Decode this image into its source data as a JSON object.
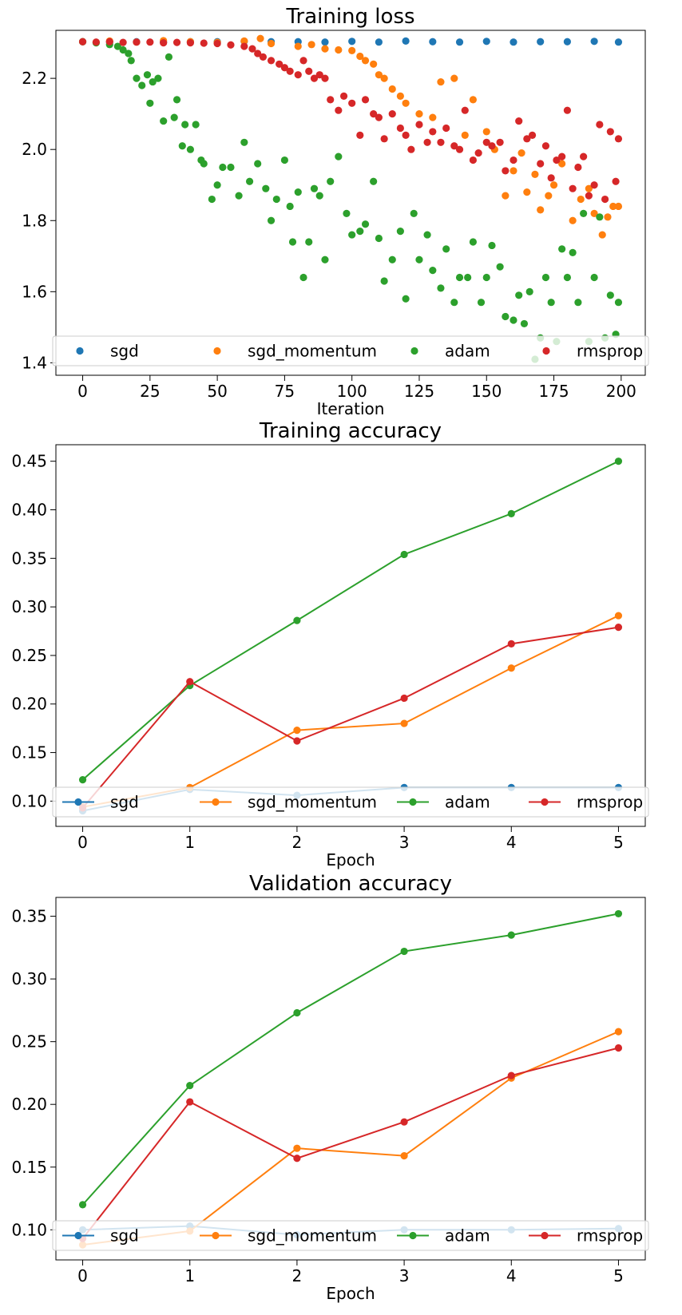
{
  "colors": {
    "sgd": "#1f77b4",
    "sgd_momentum": "#ff7f0e",
    "adam": "#2ca02c",
    "rmsprop": "#d62728"
  },
  "chart_data": [
    {
      "type": "scatter",
      "title": "Training loss",
      "xlabel": "Iteration",
      "ylabel": "",
      "xlim": [
        -9.95,
        208.95
      ],
      "ylim": [
        1.365,
        2.335
      ],
      "xticks": [
        0,
        25,
        50,
        75,
        100,
        125,
        150,
        175,
        200
      ],
      "yticks": [
        1.4,
        1.6,
        1.8,
        2.0,
        2.2
      ],
      "ytick_labels": [
        "1.4",
        "1.6",
        "1.8",
        "2.0",
        "2.2"
      ],
      "grid": false,
      "legend_placement": "lower center, one row",
      "series": [
        {
          "name": "sgd",
          "color": "#1f77b4",
          "x": [
            0,
            10,
            20,
            30,
            40,
            50,
            60,
            70,
            80,
            90,
            100,
            110,
            120,
            130,
            140,
            150,
            160,
            170,
            180,
            190,
            199
          ],
          "y": [
            2.303,
            2.302,
            2.303,
            2.302,
            2.303,
            2.303,
            2.304,
            2.303,
            2.303,
            2.302,
            2.304,
            2.302,
            2.305,
            2.303,
            2.302,
            2.304,
            2.302,
            2.303,
            2.303,
            2.304,
            2.302
          ]
        },
        {
          "name": "sgd_momentum",
          "color": "#ff7f0e",
          "x": [
            0,
            10,
            20,
            30,
            40,
            50,
            60,
            66,
            70,
            80,
            85,
            90,
            95,
            100,
            103,
            105,
            108,
            110,
            112,
            115,
            118,
            120,
            125,
            130,
            133,
            138,
            142,
            145,
            150,
            153,
            157,
            160,
            163,
            165,
            168,
            170,
            173,
            175,
            178,
            182,
            185,
            188,
            190,
            193,
            195,
            197,
            199
          ],
          "y": [
            2.303,
            2.305,
            2.302,
            2.306,
            2.303,
            2.301,
            2.305,
            2.312,
            2.298,
            2.29,
            2.295,
            2.283,
            2.28,
            2.278,
            2.262,
            2.25,
            2.24,
            2.21,
            2.2,
            2.17,
            2.15,
            2.13,
            2.1,
            2.09,
            2.19,
            2.2,
            2.04,
            2.14,
            2.05,
            2.0,
            1.87,
            1.94,
            1.99,
            1.88,
            1.93,
            1.83,
            1.87,
            1.9,
            1.96,
            1.8,
            1.86,
            1.89,
            1.82,
            1.76,
            1.81,
            1.84,
            1.84
          ]
        },
        {
          "name": "adam",
          "color": "#2ca02c",
          "x": [
            0,
            5,
            10,
            13,
            15,
            17,
            18,
            20,
            22,
            24,
            25,
            26,
            28,
            30,
            32,
            34,
            35,
            37,
            38,
            40,
            42,
            44,
            45,
            48,
            50,
            52,
            55,
            58,
            60,
            62,
            65,
            68,
            70,
            72,
            75,
            77,
            78,
            80,
            82,
            84,
            86,
            88,
            90,
            92,
            95,
            98,
            100,
            103,
            105,
            108,
            110,
            112,
            115,
            118,
            120,
            123,
            125,
            128,
            130,
            133,
            135,
            138,
            140,
            143,
            145,
            148,
            150,
            152,
            155,
            157,
            160,
            162,
            164,
            166,
            168,
            170,
            172,
            174,
            176,
            178,
            180,
            182,
            184,
            186,
            188,
            190,
            192,
            194,
            196,
            198,
            199
          ],
          "y": [
            2.303,
            2.3,
            2.295,
            2.29,
            2.28,
            2.27,
            2.25,
            2.2,
            2.18,
            2.21,
            2.13,
            2.19,
            2.2,
            2.08,
            2.26,
            2.09,
            2.14,
            2.01,
            2.07,
            2.0,
            2.07,
            1.97,
            1.96,
            1.86,
            1.9,
            1.95,
            1.95,
            1.87,
            2.02,
            1.91,
            1.96,
            1.89,
            1.8,
            1.86,
            1.97,
            1.84,
            1.74,
            1.88,
            1.64,
            1.74,
            1.89,
            1.87,
            1.69,
            1.91,
            1.98,
            1.82,
            1.76,
            1.77,
            1.79,
            1.91,
            1.75,
            1.63,
            1.69,
            1.77,
            1.58,
            1.82,
            1.69,
            1.76,
            1.66,
            1.61,
            1.72,
            1.57,
            1.64,
            1.64,
            1.74,
            1.57,
            1.64,
            1.73,
            1.67,
            1.53,
            1.52,
            1.59,
            1.51,
            1.6,
            1.41,
            1.47,
            1.64,
            1.57,
            1.46,
            1.72,
            1.64,
            1.71,
            1.57,
            1.82,
            1.46,
            1.64,
            1.81,
            1.47,
            1.59,
            1.48,
            1.57
          ]
        },
        {
          "name": "rmsprop",
          "color": "#d62728",
          "x": [
            0,
            5,
            10,
            15,
            20,
            25,
            30,
            35,
            40,
            45,
            50,
            55,
            60,
            63,
            65,
            67,
            70,
            73,
            75,
            77,
            80,
            82,
            84,
            86,
            88,
            90,
            92,
            95,
            97,
            100,
            103,
            105,
            108,
            110,
            112,
            115,
            118,
            120,
            122,
            125,
            128,
            130,
            133,
            135,
            138,
            140,
            142,
            145,
            147,
            150,
            152,
            155,
            157,
            160,
            162,
            165,
            167,
            170,
            172,
            174,
            176,
            178,
            180,
            182,
            184,
            186,
            188,
            190,
            192,
            194,
            196,
            198,
            199
          ],
          "y": [
            2.303,
            2.302,
            2.303,
            2.301,
            2.302,
            2.302,
            2.3,
            2.301,
            2.3,
            2.299,
            2.298,
            2.294,
            2.29,
            2.283,
            2.27,
            2.26,
            2.25,
            2.24,
            2.23,
            2.22,
            2.21,
            2.25,
            2.22,
            2.2,
            2.21,
            2.2,
            2.14,
            2.11,
            2.15,
            2.13,
            2.04,
            2.14,
            2.1,
            2.09,
            2.03,
            2.1,
            2.06,
            2.04,
            2.0,
            2.07,
            2.02,
            2.05,
            2.02,
            2.06,
            2.01,
            2.0,
            2.11,
            1.97,
            1.99,
            2.02,
            2.01,
            2.02,
            1.94,
            1.97,
            2.08,
            2.03,
            2.04,
            1.96,
            2.01,
            1.92,
            1.97,
            1.98,
            2.11,
            1.89,
            1.95,
            1.98,
            1.87,
            1.9,
            2.07,
            1.86,
            2.05,
            1.91,
            2.03
          ]
        }
      ]
    },
    {
      "type": "line",
      "title": "Training accuracy",
      "xlabel": "Epoch",
      "ylabel": "",
      "x": [
        0,
        1,
        2,
        3,
        4,
        5
      ],
      "xlim": [
        -0.25,
        5.25
      ],
      "ylim": [
        0.074,
        0.467
      ],
      "xticks": [
        0,
        1,
        2,
        3,
        4,
        5
      ],
      "yticks": [
        0.1,
        0.15,
        0.2,
        0.25,
        0.3,
        0.35,
        0.4,
        0.45
      ],
      "ytick_labels": [
        "0.10",
        "0.15",
        "0.20",
        "0.25",
        "0.30",
        "0.35",
        "0.40",
        "0.45"
      ],
      "grid": false,
      "legend_placement": "lower center, one row",
      "series": [
        {
          "name": "sgd",
          "color": "#1f77b4",
          "values": [
            0.09,
            0.112,
            0.106,
            0.114,
            0.114,
            0.114
          ]
        },
        {
          "name": "sgd_momentum",
          "color": "#ff7f0e",
          "values": [
            0.094,
            0.114,
            0.173,
            0.18,
            0.237,
            0.291
          ]
        },
        {
          "name": "adam",
          "color": "#2ca02c",
          "values": [
            0.122,
            0.219,
            0.286,
            0.354,
            0.396,
            0.45
          ]
        },
        {
          "name": "rmsprop",
          "color": "#d62728",
          "values": [
            0.093,
            0.223,
            0.162,
            0.206,
            0.262,
            0.279
          ]
        }
      ]
    },
    {
      "type": "line",
      "title": "Validation accuracy",
      "xlabel": "Epoch",
      "ylabel": "",
      "x": [
        0,
        1,
        2,
        3,
        4,
        5
      ],
      "xlim": [
        -0.25,
        5.25
      ],
      "ylim": [
        0.076,
        0.365
      ],
      "xticks": [
        0,
        1,
        2,
        3,
        4,
        5
      ],
      "yticks": [
        0.1,
        0.15,
        0.2,
        0.25,
        0.3,
        0.35
      ],
      "ytick_labels": [
        "0.10",
        "0.15",
        "0.20",
        "0.25",
        "0.30",
        "0.35"
      ],
      "grid": false,
      "legend_placement": "lower center, one row",
      "series": [
        {
          "name": "sgd",
          "color": "#1f77b4",
          "values": [
            0.1,
            0.103,
            0.096,
            0.1,
            0.1,
            0.101
          ]
        },
        {
          "name": "sgd_momentum",
          "color": "#ff7f0e",
          "values": [
            0.088,
            0.099,
            0.165,
            0.159,
            0.221,
            0.258
          ]
        },
        {
          "name": "adam",
          "color": "#2ca02c",
          "values": [
            0.12,
            0.215,
            0.273,
            0.322,
            0.335,
            0.352
          ]
        },
        {
          "name": "rmsprop",
          "color": "#d62728",
          "values": [
            0.093,
            0.202,
            0.157,
            0.186,
            0.223,
            0.245
          ]
        }
      ]
    }
  ]
}
